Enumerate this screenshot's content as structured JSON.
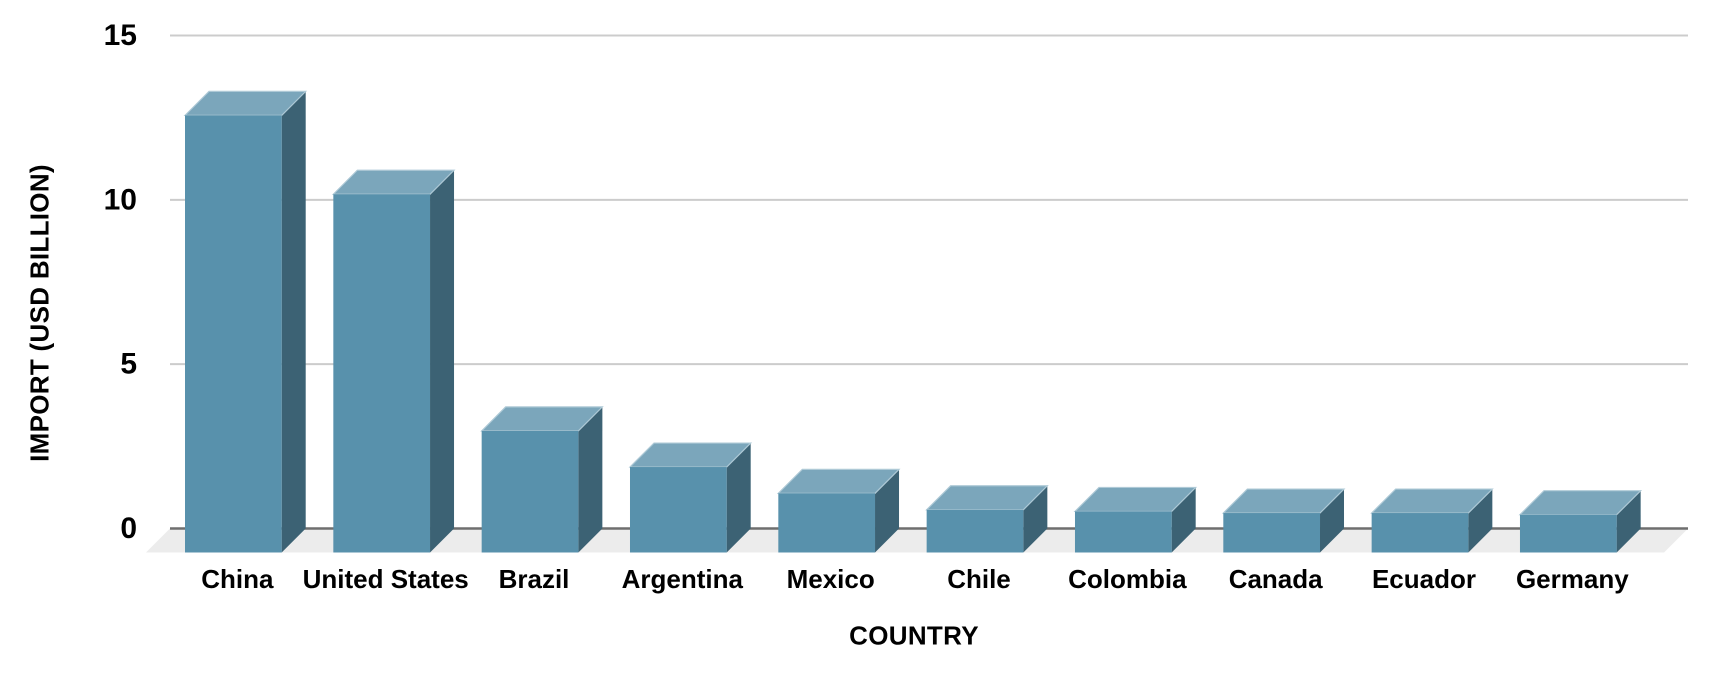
{
  "chart_data": {
    "type": "bar",
    "style": "3d-column",
    "title": "",
    "xlabel": "COUNTRY",
    "ylabel": "IMPORT (USD BILLION)",
    "categories": [
      "China",
      "United States",
      "Brazil",
      "Argentina",
      "Mexico",
      "Chile",
      "Colombia",
      "Canada",
      "Ecuador",
      "Germany"
    ],
    "values": [
      13.3,
      10.9,
      3.7,
      2.6,
      1.8,
      1.3,
      1.25,
      1.2,
      1.2,
      1.15
    ],
    "ylim": [
      0,
      15
    ],
    "yticks": [
      0,
      5,
      10,
      15
    ],
    "grid": true,
    "legend": false,
    "colors": {
      "bar_front": "#5891ac",
      "bar_top": "#7ba6bb",
      "bar_side": "#3c6274",
      "bar_edge": "#aec9d6",
      "floor": "#ececec",
      "gridline": "#cccccc",
      "axis_line": "#6e6e6e",
      "text": "#000000",
      "background": "#ffffff"
    }
  }
}
